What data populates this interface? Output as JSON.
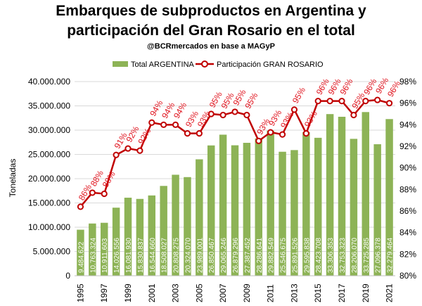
{
  "chart_data": {
    "type": "bar",
    "title": [
      "Embarques de subproductos en Argentina y",
      "participación del Gran Rosario en el total"
    ],
    "subtitle": "@BCRmercados en base a MAGyP",
    "ylabel": "Toneladas",
    "ylim": [
      0,
      40000000
    ],
    "y2lim": [
      80,
      98
    ],
    "y_ticks": [
      "0",
      "5.000.000",
      "10.000.000",
      "15.000.000",
      "20.000.000",
      "25.000.000",
      "30.000.000",
      "35.000.000",
      "40.000.000"
    ],
    "y2_ticks": [
      "80%",
      "82%",
      "84%",
      "86%",
      "88%",
      "90%",
      "92%",
      "94%",
      "96%",
      "98%"
    ],
    "x_tick_labels": [
      "1995",
      "1997",
      "1999",
      "2001",
      "2003",
      "2005",
      "2007",
      "2009",
      "2011",
      "2013",
      "2015",
      "2017",
      "2019",
      "2021"
    ],
    "categories": [
      1995,
      1996,
      1997,
      1998,
      1999,
      2000,
      2001,
      2002,
      2003,
      2004,
      2005,
      2006,
      2007,
      2008,
      2009,
      2010,
      2011,
      2012,
      2013,
      2014,
      2015,
      2016,
      2017,
      2018,
      2019,
      2020,
      2021
    ],
    "legend": {
      "placement": "top",
      "bar_name": "Total ARGENTINA",
      "line_name": "Participación GRAN ROSARIO"
    },
    "series": [
      {
        "name": "Total ARGENTINA",
        "type": "bar",
        "color": "#8db356",
        "values": [
          9484622,
          10763324,
          10911603,
          14026556,
          16081930,
          15830837,
          16544660,
          18508027,
          20808275,
          20324070,
          23989001,
          26850467,
          29065246,
          26879296,
          27387452,
          28286641,
          29882549,
          25546675,
          25891526,
          29595838,
          28423708,
          33306353,
          32753323,
          28206070,
          33725285,
          27096378,
          32279464
        ],
        "labels": [
          "9.484.622",
          "10.763.324",
          "10.911.603",
          "14.026.556",
          "16.081.930",
          "15.830.837",
          "16.544.660",
          "18.508.027",
          "20.808.275",
          "20.324.070",
          "23.989.001",
          "26.850.467",
          "29.065.246",
          "26.879.296",
          "27.387.452",
          "28.286.641",
          "29.882.549",
          "25.546.675",
          "25.891.526",
          "29.595.838",
          "28.423.708",
          "33.306.353",
          "32.753.323",
          "28.206.070",
          "33.725.285",
          "27.096.378",
          "32.279.464"
        ]
      },
      {
        "name": "Participación GRAN ROSARIO",
        "type": "line",
        "axis": "right",
        "color": "#c00000",
        "values": [
          86.4,
          87.7,
          87.6,
          91.2,
          91.8,
          91.6,
          94.2,
          94.0,
          94.0,
          93.2,
          93.2,
          95.0,
          94.9,
          95.2,
          94.9,
          92.5,
          93.3,
          93.1,
          95.4,
          93.2,
          96.2,
          96.2,
          96.2,
          94.9,
          96.2,
          96.3,
          96.0
        ],
        "labels": [
          "86%",
          "88%",
          "88%",
          "91%",
          "92%",
          "92%",
          "94%",
          "94%",
          "94%",
          "93%",
          "93%",
          "95%",
          "95%",
          "95%",
          "95%",
          "93%",
          "93%",
          "93%",
          "95%",
          "93%",
          "96%",
          "96%",
          "96%",
          "95%",
          "96%",
          "96%",
          "96%"
        ]
      }
    ]
  }
}
